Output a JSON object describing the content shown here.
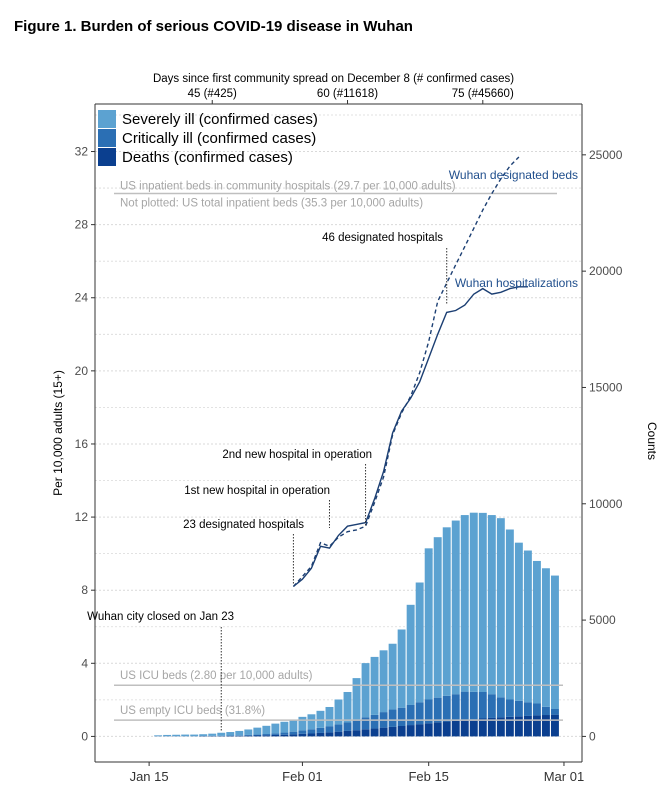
{
  "figure_title": "Figure 1. Burden of serious COVID-19 disease in Wuhan",
  "colors": {
    "severe": "#5ca2d1",
    "critical": "#2b6fb4",
    "deaths": "#0b3f8f",
    "line": "#1c3f73",
    "designated_label": "#1f4e8c",
    "ref_line": "#bfbfbf",
    "ref_text": "#a6a6a6",
    "grid": "#d9d9d9"
  },
  "chart_data": {
    "type": "bar",
    "title": "Burden of serious COVID-19 disease in Wuhan",
    "ylabel": "Per 10,000 adults (15+)",
    "y2label": "Counts",
    "top_axis_label": "Days since first community spread on December 8 (# confirmed cases)",
    "ylim": [
      -1.4,
      34.6
    ],
    "y_ticks": [
      0,
      4,
      8,
      12,
      16,
      20,
      24,
      28,
      32
    ],
    "y_tick_labels": [
      "0",
      "4",
      "8",
      "12",
      "16",
      "20",
      "24",
      "28",
      "32"
    ],
    "y2_ticks": [
      0,
      5000,
      10000,
      15000,
      20000,
      25000
    ],
    "y2_tick_labels": [
      "0",
      "5000",
      "10000",
      "15000",
      "20000",
      "25000"
    ],
    "y2_per_unit": 785.7,
    "x_ticks": [
      "2020-01-15",
      "2020-02-01",
      "2020-02-15",
      "2020-03-01"
    ],
    "x_tick_labels": [
      "Jan 15",
      "Feb 01",
      "Feb 15",
      "Mar 01"
    ],
    "xlim": [
      "2020-01-09",
      "2020-03-03"
    ],
    "top_ticks": [
      "2020-01-22",
      "2020-02-06",
      "2020-02-21"
    ],
    "top_tick_labels": [
      "45 (#425)",
      "60 (#11618)",
      "75 (#45660)"
    ],
    "grid": true,
    "legend": {
      "position": "top-left",
      "entries": [
        "Severely ill (confirmed cases)",
        "Critically ill (confirmed cases)",
        "Deaths (confirmed cases)"
      ]
    },
    "categories": [
      "2020-01-16",
      "2020-01-17",
      "2020-01-18",
      "2020-01-19",
      "2020-01-20",
      "2020-01-21",
      "2020-01-22",
      "2020-01-23",
      "2020-01-24",
      "2020-01-25",
      "2020-01-26",
      "2020-01-27",
      "2020-01-28",
      "2020-01-29",
      "2020-01-30",
      "2020-01-31",
      "2020-02-01",
      "2020-02-02",
      "2020-02-03",
      "2020-02-04",
      "2020-02-05",
      "2020-02-06",
      "2020-02-07",
      "2020-02-08",
      "2020-02-09",
      "2020-02-10",
      "2020-02-11",
      "2020-02-12",
      "2020-02-13",
      "2020-02-14",
      "2020-02-15",
      "2020-02-16",
      "2020-02-17",
      "2020-02-18",
      "2020-02-19",
      "2020-02-20",
      "2020-02-21",
      "2020-02-22",
      "2020-02-23",
      "2020-02-24",
      "2020-02-25",
      "2020-02-26",
      "2020-02-27",
      "2020-02-28",
      "2020-02-29"
    ],
    "series": [
      {
        "name": "Deaths (confirmed cases)",
        "values": [
          0.01,
          0.01,
          0.01,
          0.01,
          0.01,
          0.02,
          0.02,
          0.02,
          0.03,
          0.03,
          0.04,
          0.05,
          0.06,
          0.08,
          0.09,
          0.11,
          0.14,
          0.16,
          0.19,
          0.22,
          0.26,
          0.3,
          0.34,
          0.39,
          0.43,
          0.48,
          0.52,
          0.57,
          0.62,
          0.67,
          0.72,
          0.77,
          0.82,
          0.86,
          0.9,
          0.94,
          0.98,
          1.01,
          1.04,
          1.07,
          1.1,
          1.12,
          1.15,
          1.17,
          1.19
        ]
      },
      {
        "name": "Critically ill (confirmed cases)",
        "values": [
          0.0,
          0.0,
          0.0,
          0.0,
          0.0,
          0.0,
          0.01,
          0.01,
          0.02,
          0.03,
          0.04,
          0.05,
          0.07,
          0.09,
          0.12,
          0.15,
          0.19,
          0.23,
          0.28,
          0.34,
          0.4,
          0.46,
          0.55,
          0.65,
          0.75,
          0.85,
          0.95,
          1.0,
          1.1,
          1.2,
          1.3,
          1.35,
          1.4,
          1.45,
          1.55,
          1.5,
          1.45,
          1.3,
          1.1,
          0.95,
          0.85,
          0.75,
          0.65,
          0.45,
          0.31
        ]
      },
      {
        "name": "Severely ill (confirmed cases)",
        "values": [
          0.05,
          0.07,
          0.08,
          0.09,
          0.09,
          0.1,
          0.12,
          0.17,
          0.19,
          0.24,
          0.3,
          0.38,
          0.45,
          0.53,
          0.59,
          0.66,
          0.74,
          0.82,
          0.93,
          1.05,
          1.36,
          1.67,
          2.3,
          2.97,
          3.17,
          3.38,
          3.6,
          4.28,
          5.48,
          6.55,
          8.27,
          8.78,
          9.22,
          9.5,
          9.66,
          9.8,
          9.8,
          9.8,
          9.8,
          9.3,
          8.65,
          8.3,
          7.8,
          7.58,
          7.3
        ]
      }
    ],
    "hospitalizations": {
      "name": "Wuhan hospitalizations",
      "x": [
        "2020-01-31",
        "2020-02-01",
        "2020-02-02",
        "2020-02-03",
        "2020-02-04",
        "2020-02-05",
        "2020-02-06",
        "2020-02-07",
        "2020-02-08",
        "2020-02-09",
        "2020-02-10",
        "2020-02-11",
        "2020-02-12",
        "2020-02-13",
        "2020-02-14",
        "2020-02-15",
        "2020-02-16",
        "2020-02-17",
        "2020-02-18",
        "2020-02-19",
        "2020-02-20",
        "2020-02-21",
        "2020-02-22",
        "2020-02-23",
        "2020-02-24",
        "2020-02-25",
        "2020-02-26"
      ],
      "y": [
        8.2,
        8.6,
        9.2,
        10.4,
        10.3,
        11.0,
        11.5,
        11.6,
        11.7,
        13.0,
        14.5,
        16.6,
        17.8,
        18.5,
        19.4,
        20.7,
        22.0,
        23.2,
        23.3,
        23.6,
        24.2,
        24.5,
        24.2,
        24.3,
        24.5,
        24.6,
        24.6
      ]
    },
    "designated_beds": {
      "name": "Wuhan designated beds",
      "x": [
        "2020-01-31",
        "2020-02-02",
        "2020-02-03",
        "2020-02-04",
        "2020-02-05",
        "2020-02-06",
        "2020-02-07",
        "2020-02-08",
        "2020-02-09",
        "2020-02-10",
        "2020-02-11",
        "2020-02-12",
        "2020-02-13",
        "2020-02-14",
        "2020-02-15",
        "2020-02-16",
        "2020-02-17",
        "2020-02-18",
        "2020-02-19",
        "2020-02-20",
        "2020-02-21",
        "2020-02-22",
        "2020-02-23",
        "2020-02-24",
        "2020-02-25"
      ],
      "y": [
        8.2,
        9.3,
        10.6,
        10.4,
        10.9,
        11.2,
        11.3,
        11.5,
        12.8,
        14.2,
        16.5,
        17.7,
        18.6,
        19.9,
        21.6,
        23.8,
        24.8,
        25.8,
        26.8,
        27.8,
        28.8,
        29.7,
        30.5,
        31.2,
        31.7
      ]
    },
    "reference_lines": [
      {
        "label": "US inpatient beds in community hospitals (29.7 per 10,000 adults)",
        "value": 29.7
      },
      {
        "label": "US ICU beds (2.80 per 10,000 adults)",
        "value": 2.8
      },
      {
        "label": "US empty ICU beds (31.8%)",
        "value": 0.89
      }
    ],
    "note": "Not plotted: US total inpatient beds (35.3 per 10,000 adults)",
    "annotations": [
      {
        "text": "46 designated hospitals",
        "date": "2020-02-17"
      },
      {
        "text": "2nd new hospital in operation",
        "date": "2020-02-08"
      },
      {
        "text": "1st new hospital in operation",
        "date": "2020-02-04"
      },
      {
        "text": "23 designated hospitals",
        "date": "2020-01-31"
      },
      {
        "text": "Wuhan city closed on Jan 23",
        "date": "2020-01-23"
      }
    ]
  }
}
